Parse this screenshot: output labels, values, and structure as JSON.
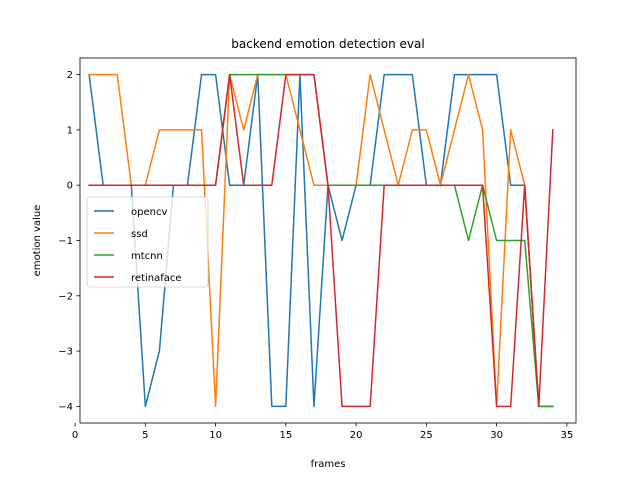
{
  "chart_data": {
    "type": "line",
    "title": "backend emotion detection eval",
    "xlabel": "frames",
    "ylabel": "emotion value",
    "xlim": [
      0.35,
      35.65
    ],
    "ylim": [
      -4.3,
      2.3
    ],
    "xticks": [
      0,
      5,
      10,
      15,
      20,
      25,
      30,
      35
    ],
    "yticks": [
      -4,
      -3,
      -2,
      -1,
      0,
      1,
      2
    ],
    "grid": false,
    "legend_position": "center-left",
    "x": [
      1,
      2,
      3,
      4,
      5,
      6,
      7,
      8,
      9,
      10,
      11,
      12,
      13,
      14,
      15,
      16,
      17,
      18,
      19,
      20,
      21,
      22,
      23,
      24,
      25,
      26,
      27,
      28,
      29,
      30,
      31,
      32,
      33,
      34
    ],
    "series": [
      {
        "name": "opencv",
        "color": "#1f77b4",
        "values": [
          2,
          0,
          0,
          0,
          -4,
          -3,
          0,
          0,
          2,
          2,
          0,
          0,
          2,
          -4,
          -4,
          2,
          -4,
          0,
          -1,
          0,
          0,
          2,
          2,
          2,
          0,
          0,
          2,
          2,
          2,
          2,
          0,
          0,
          -4,
          -4
        ]
      },
      {
        "name": "ssd",
        "color": "#ff7f0e",
        "values": [
          2,
          2,
          2,
          0,
          0,
          1,
          1,
          1,
          1,
          -4,
          2,
          1,
          2,
          2,
          2,
          1,
          0,
          0,
          0,
          0,
          2,
          1,
          0,
          1,
          1,
          0,
          1,
          2,
          1,
          -4,
          1,
          0,
          -4,
          -4
        ]
      },
      {
        "name": "mtcnn",
        "color": "#2ca02c",
        "values": [
          0,
          0,
          0,
          0,
          0,
          0,
          0,
          0,
          0,
          0,
          2,
          2,
          2,
          2,
          2,
          2,
          2,
          0,
          0,
          0,
          0,
          0,
          0,
          0,
          0,
          0,
          0,
          -1,
          0,
          -1,
          -1,
          -1,
          -4,
          -4
        ]
      },
      {
        "name": "retinaface",
        "color": "#d62728",
        "values": [
          0,
          0,
          0,
          0,
          0,
          0,
          0,
          0,
          0,
          0,
          2,
          0,
          0,
          0,
          2,
          2,
          2,
          0,
          -4,
          -4,
          -4,
          0,
          0,
          0,
          0,
          0,
          0,
          0,
          0,
          -4,
          -4,
          0,
          -4,
          1
        ]
      }
    ]
  }
}
